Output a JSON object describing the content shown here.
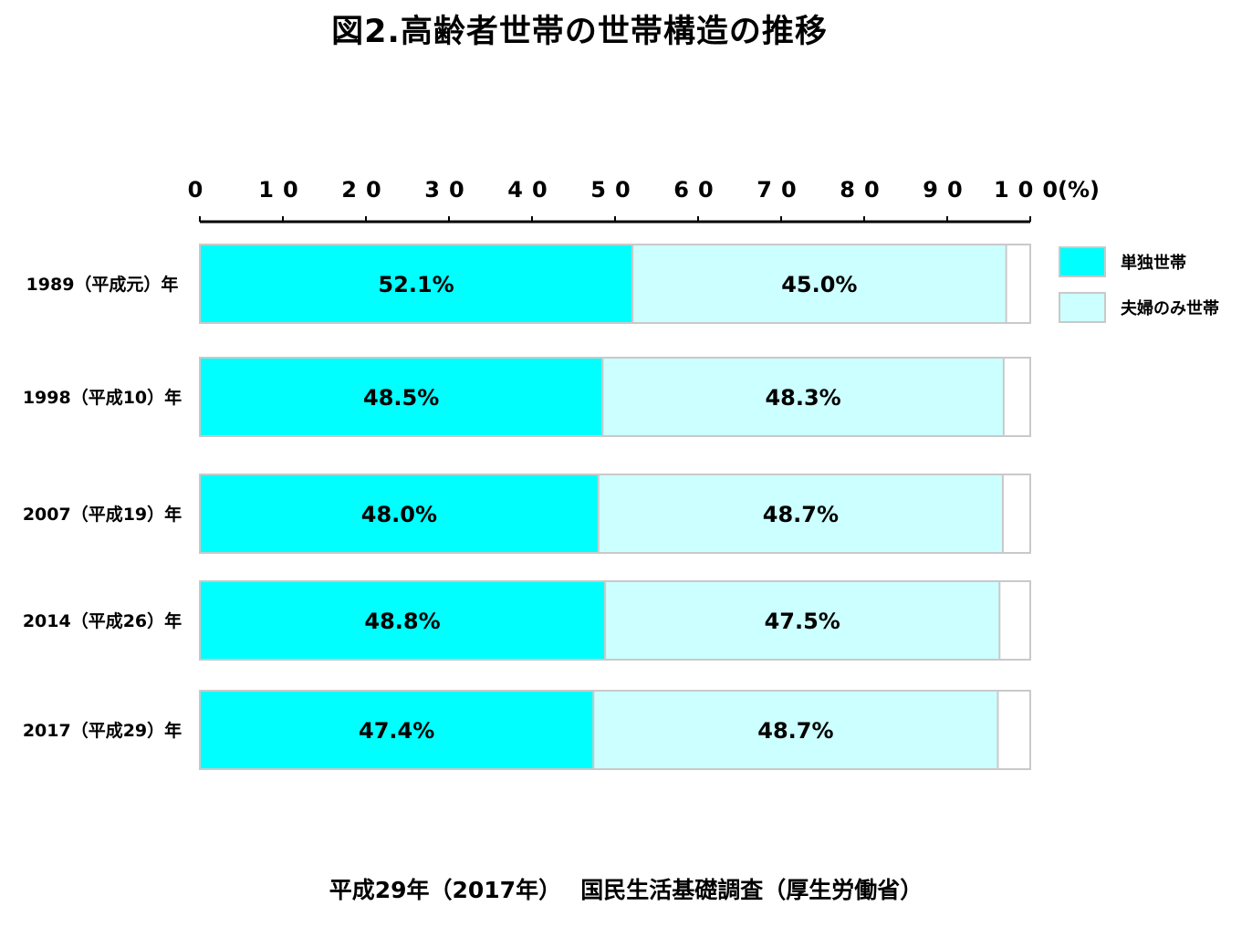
{
  "title": "図2.高齢者世帯の世帯構造の推移",
  "source": "平成29年（2017年）　 国民生活基礎調査（厚生労働省）",
  "colors": {
    "single": "#00ffff",
    "couple": "#ccffff",
    "other": "#ffffff",
    "border": "#c9c9c9",
    "axis": "#000000"
  },
  "chart_data": {
    "type": "bar",
    "orientation": "horizontal",
    "stacked": true,
    "categories": [
      "1989（平成元）年",
      "1998（平成10）年",
      "2007（平成19）年",
      "2014（平成26）年",
      "2017（平成29）年"
    ],
    "series": [
      {
        "name": "単独世帯",
        "values": [
          52.1,
          48.5,
          48.0,
          48.8,
          47.4
        ],
        "labels": [
          "52.1%",
          "48.5%",
          "48.0%",
          "48.8%",
          "47.4%"
        ],
        "color": "#00ffff"
      },
      {
        "name": "夫婦のみ世帯",
        "values": [
          45.0,
          48.3,
          48.7,
          47.5,
          48.7
        ],
        "labels": [
          "45.0%",
          "48.3%",
          "48.7%",
          "47.5%",
          "48.7%"
        ],
        "color": "#ccffff"
      }
    ],
    "x_ticks": [
      "0",
      "10",
      "20",
      "30",
      "40",
      "50",
      "60",
      "70",
      "80",
      "90",
      "100"
    ],
    "x_unit": "(%)",
    "xlim": [
      0,
      100
    ],
    "x_axis_position": "top",
    "grid": false,
    "legend_position": "right"
  }
}
